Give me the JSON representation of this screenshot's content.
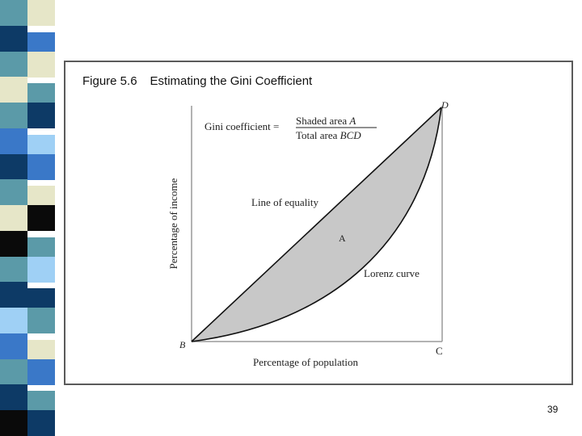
{
  "figure": {
    "number": "Figure 5.6",
    "title": "Estimating the Gini Coefficient"
  },
  "diagram": {
    "formula": {
      "lhs": "Gini coefficient =",
      "numerator_text": "Shaded area ",
      "numerator_var": "A",
      "denominator_text": "Total area ",
      "denominator_var": "BCD"
    },
    "labels": {
      "line_of_equality": "Line of equality",
      "area": "A",
      "lorenz_curve": "Lorenz curve",
      "point_b": "B",
      "point_c": "C",
      "point_d": "D"
    },
    "axes": {
      "x_label": "Percentage of population",
      "y_label": "Percentage of income"
    },
    "colors": {
      "shaded_area": "#c8c8c8",
      "axis": "#9a9a9a",
      "curve": "#111111"
    }
  },
  "page_number": "39"
}
